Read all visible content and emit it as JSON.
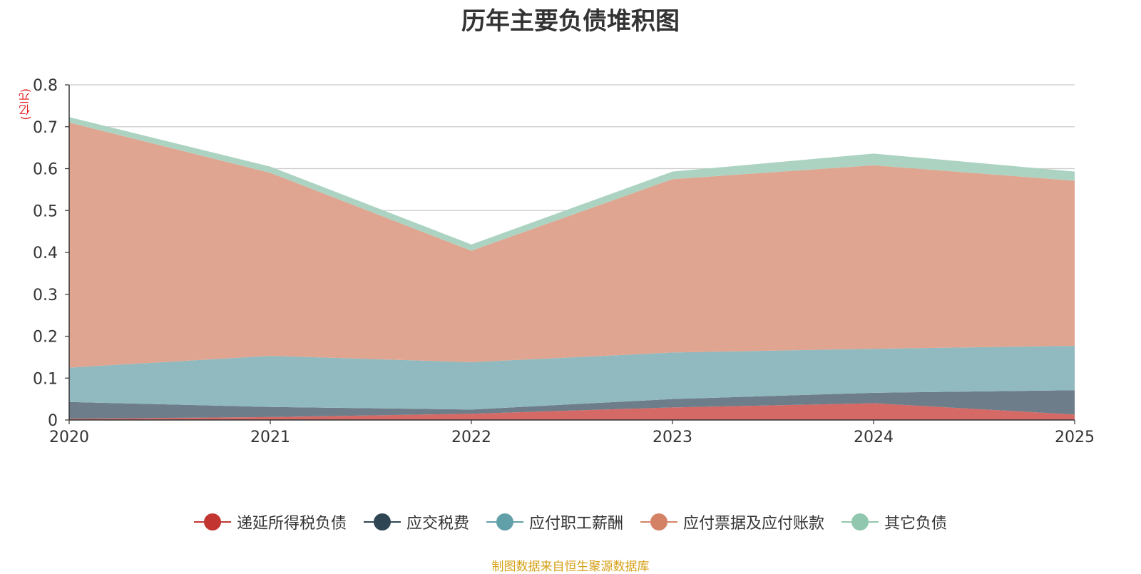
{
  "chart_data": {
    "type": "area",
    "stacked": true,
    "title": "历年主要负债堆积图",
    "ylabel": "(亿元)",
    "xlabel": "",
    "ylim": [
      0,
      0.8
    ],
    "yticks": [
      "0",
      "0.1",
      "0.2",
      "0.3",
      "0.4",
      "0.5",
      "0.6",
      "0.7",
      "0.8"
    ],
    "categories": [
      "2020",
      "2021",
      "2022",
      "2023",
      "2024",
      "2025"
    ],
    "series": [
      {
        "name": "递延所得税负债",
        "color": "#c23531",
        "fill": "#d46966",
        "values": [
          0.003,
          0.007,
          0.015,
          0.03,
          0.04,
          0.013
        ]
      },
      {
        "name": "应交税费",
        "color": "#2f4554",
        "fill": "#6d7d89",
        "values": [
          0.04,
          0.024,
          0.01,
          0.02,
          0.025,
          0.058
        ]
      },
      {
        "name": "应付职工薪酬",
        "color": "#61a0a8",
        "fill": "#90bac0",
        "values": [
          0.082,
          0.122,
          0.113,
          0.111,
          0.105,
          0.106
        ]
      },
      {
        "name": "应付票据及应付账款",
        "color": "#d48265",
        "fill": "#dfa590",
        "values": [
          0.585,
          0.437,
          0.266,
          0.414,
          0.438,
          0.394
        ]
      },
      {
        "name": "其它负债",
        "color": "#91c7ae",
        "fill": "#acd3c1",
        "values": [
          0.013,
          0.015,
          0.015,
          0.018,
          0.028,
          0.022
        ]
      }
    ]
  },
  "source": "制图数据来自恒生聚源数据库"
}
